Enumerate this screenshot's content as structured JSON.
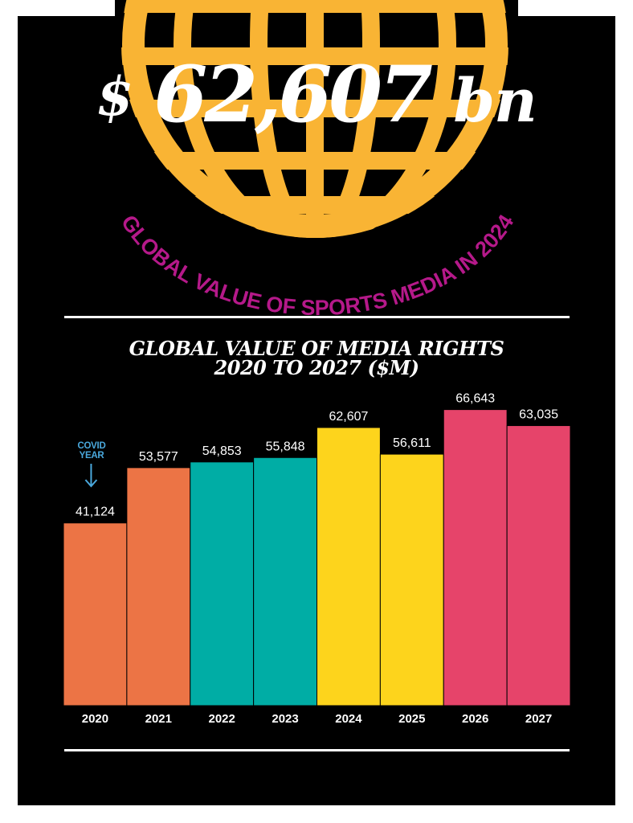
{
  "colors": {
    "background": "#000000",
    "globe": "#F9B434",
    "subtitle": "#B5198A",
    "text": "#FFFFFF",
    "covid": "#4AA8DC",
    "orange": "#EC7445",
    "teal": "#00ADA5",
    "yellow": "#FDD41C",
    "pink": "#E6446A"
  },
  "header": {
    "currency": "$",
    "value": "62,607",
    "unit": "bn",
    "subtitle": "GLOBAL VALUE OF SPORTS MEDIA IN 2024",
    "icon": "globe-icon"
  },
  "chart_data": {
    "type": "bar",
    "title_line1": "GLOBAL VALUE OF MEDIA RIGHTS",
    "title_line2": "2020 TO 2027 ($M)",
    "categories": [
      "2020",
      "2021",
      "2022",
      "2023",
      "2024",
      "2025",
      "2026",
      "2027"
    ],
    "values": [
      41124,
      53577,
      54853,
      55848,
      62607,
      56611,
      66643,
      63035
    ],
    "labels": [
      "41,124",
      "53,577",
      "54,853",
      "55,848",
      "62,607",
      "56,611",
      "66,643",
      "63,035"
    ],
    "bar_colors": [
      "#EC7445",
      "#EC7445",
      "#00ADA5",
      "#00ADA5",
      "#FDD41C",
      "#FDD41C",
      "#E6446A",
      "#E6446A"
    ],
    "ylim": [
      0,
      72000
    ],
    "grid": false,
    "legend": "none",
    "annotation": {
      "line1": "COVID",
      "line2": "YEAR",
      "category": "2020",
      "icon": "arrow-down-icon"
    }
  }
}
